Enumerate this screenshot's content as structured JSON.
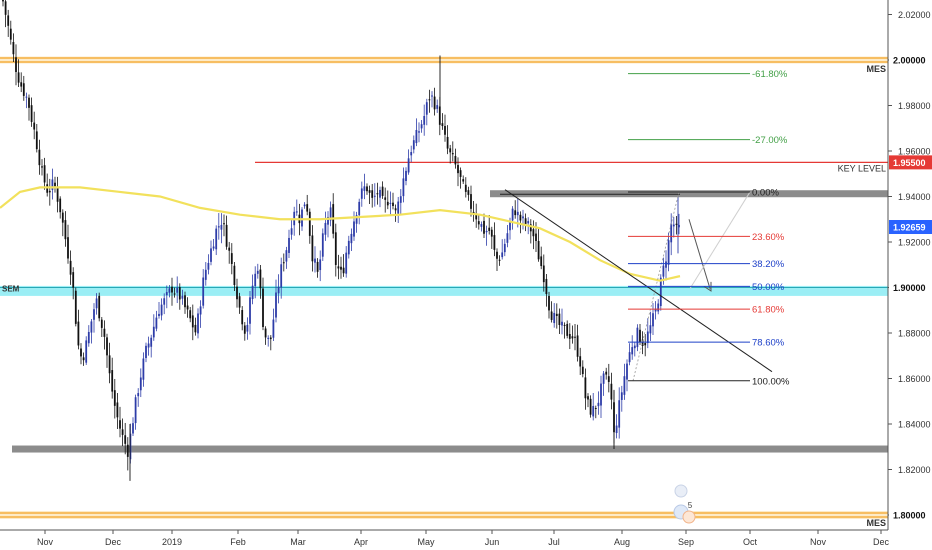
{
  "chart_data": {
    "type": "candlestick",
    "instrument_price": "1.92659",
    "y_axis": {
      "ylim": [
        1.7883,
        2.0295
      ],
      "ticks": [
        "2.02000",
        "2.00000",
        "1.98000",
        "1.96000",
        "1.94000",
        "1.92000",
        "1.90000",
        "1.88000",
        "1.86000",
        "1.84000",
        "1.82000",
        "1.80000"
      ],
      "tick_values": [
        2.02,
        2.0,
        1.98,
        1.96,
        1.94,
        1.92,
        1.9,
        1.88,
        1.86,
        1.84,
        1.82,
        1.8
      ]
    },
    "x_axis": {
      "labels": [
        "Nov",
        "Dec",
        "2019",
        "Feb",
        "Mar",
        "Apr",
        "May",
        "Jun",
        "Jul",
        "Aug",
        "Sep",
        "Oct",
        "Nov",
        "Dec"
      ]
    },
    "price_labels": {
      "mes_top": "2.00000",
      "key_level": "1.95500",
      "current": "1.92659",
      "sem": "1.90000",
      "mes_bottom": "1.80000"
    },
    "level_tags": {
      "mes_top": "MES",
      "key_level": "KEY LEVEL",
      "sem": "SEM",
      "mes_bottom": "MES"
    },
    "horizontal_levels": [
      {
        "name": "MES",
        "value": 2.0,
        "color": "#f5b041"
      },
      {
        "name": "KEY LEVEL",
        "value": 1.955,
        "color": "#e53935"
      },
      {
        "name": "resistance",
        "value": 1.941,
        "color": "#7d7d7d"
      },
      {
        "name": "SEM",
        "value": 1.8985,
        "color": "#7fe3ee"
      },
      {
        "name": "support",
        "value": 1.829,
        "color": "#7d7d7d"
      },
      {
        "name": "MES",
        "value": 1.8,
        "color": "#f5b041"
      }
    ],
    "fibonacci": [
      {
        "label": "-61.80%",
        "value": 1.994,
        "color": "#43a047"
      },
      {
        "label": "-27.00%",
        "value": 1.965,
        "color": "#43a047"
      },
      {
        "label": "0.00%",
        "value": 1.942,
        "color": "#222222"
      },
      {
        "label": "23.60%",
        "value": 1.9225,
        "color": "#e53935"
      },
      {
        "label": "38.20%",
        "value": 1.9105,
        "color": "#1e40c8"
      },
      {
        "label": "50.00%",
        "value": 1.9005,
        "color": "#1e40c8"
      },
      {
        "label": "61.80%",
        "value": 1.8905,
        "color": "#e53935"
      },
      {
        "label": "78.60%",
        "value": 1.876,
        "color": "#1e40c8"
      },
      {
        "label": "100.00%",
        "value": 1.859,
        "color": "#222222"
      }
    ],
    "moving_average_color": "#f2e15c",
    "up_color": "#2d3ca8",
    "down_color": "#111111",
    "event_badge": "5"
  }
}
